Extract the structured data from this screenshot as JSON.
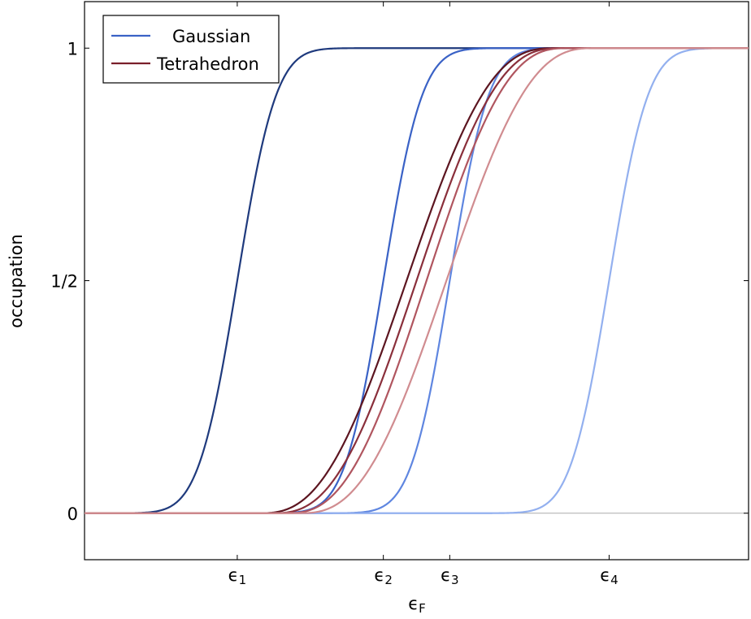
{
  "chart_data": {
    "type": "line",
    "xlabel": "ϵ",
    "xlabel_sub": "F",
    "ylabel": "occupation",
    "ylim": [
      -0.1,
      1.1
    ],
    "xlim": [
      0,
      10
    ],
    "y_ticks": [
      {
        "value": 0,
        "label": "0"
      },
      {
        "value": 0.5,
        "label": "1/2"
      },
      {
        "value": 1,
        "label": "1"
      }
    ],
    "x_ticks": [
      {
        "value": 2.3,
        "label": "ϵ",
        "sub": "1"
      },
      {
        "value": 4.5,
        "label": "ϵ",
        "sub": "2"
      },
      {
        "value": 5.5,
        "label": "ϵ",
        "sub": "3"
      },
      {
        "value": 7.9,
        "label": "ϵ",
        "sub": "4"
      }
    ],
    "zero_line": true,
    "legend": {
      "placement": "top-left",
      "entries": [
        {
          "name": "Gaussian",
          "color": "#3a62c6"
        },
        {
          "name": "Tetrahedron",
          "color": "#7a1f2a"
        }
      ]
    },
    "series": [
      {
        "group": "Gaussian",
        "color": "#1f3a7d",
        "kind": "gauss",
        "center": 2.3,
        "width": 0.65
      },
      {
        "group": "Gaussian",
        "color": "#3a62c6",
        "kind": "gauss",
        "center": 4.5,
        "width": 0.65
      },
      {
        "group": "Gaussian",
        "color": "#5f86e0",
        "kind": "gauss",
        "center": 5.5,
        "width": 0.65
      },
      {
        "group": "Gaussian",
        "color": "#93b0ef",
        "kind": "gauss",
        "center": 7.9,
        "width": 0.65
      },
      {
        "group": "Tetrahedron",
        "color": "#5c1520",
        "kind": "tetra",
        "start": 2.6,
        "end": 7.1
      },
      {
        "group": "Tetrahedron",
        "color": "#8a2f3b",
        "kind": "tetra",
        "start": 2.8,
        "end": 7.2
      },
      {
        "group": "Tetrahedron",
        "color": "#b0555f",
        "kind": "tetra",
        "start": 3.0,
        "end": 7.3
      },
      {
        "group": "Tetrahedron",
        "color": "#d08c90",
        "kind": "tetra",
        "start": 3.2,
        "end": 7.7
      }
    ]
  }
}
